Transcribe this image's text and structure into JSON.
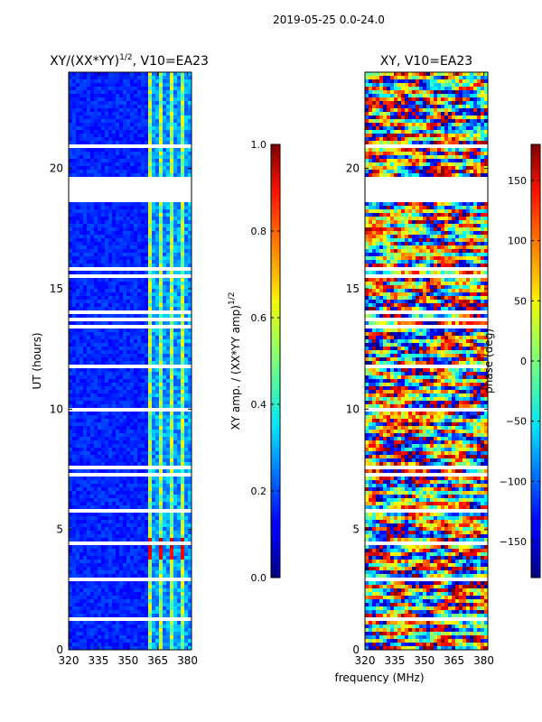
{
  "chart_data": {
    "type": "heatmap",
    "suptitle": "2019-05-25 0.0-24.0",
    "xlabel": "frequency (MHz)",
    "ylabel": "UT (hours)",
    "x_range_mhz": [
      320,
      382
    ],
    "y_range_hours": [
      0,
      24
    ],
    "x_ticks": [
      "320",
      "335",
      "350",
      "365",
      "380"
    ],
    "y_ticks": [
      "0",
      "5",
      "10",
      "15",
      "20"
    ],
    "data_gap_hours": [
      18.6,
      19.6
    ],
    "panels": [
      {
        "id": "amp",
        "title_prefix": "XY/(XX*YY)",
        "title_exp": "1/2",
        "title_suffix": ", V10=EA23",
        "quantity": "normalized XY amplitude",
        "colorbar": {
          "label_prefix": "XY amp. / (XX*YY amp)",
          "label_exp": "1/2",
          "range": [
            0.0,
            1.0
          ],
          "ticks": [
            "0.0",
            "0.2",
            "0.4",
            "0.6",
            "0.8",
            "1.0"
          ]
        }
      },
      {
        "id": "phase",
        "title_prefix": "XY",
        "title_exp": "",
        "title_suffix": ", V10=EA23",
        "quantity": "XY phase",
        "colorbar": {
          "label_prefix": "phase (deg)",
          "label_exp": "",
          "range": [
            -180,
            180
          ],
          "ticks": [
            "−150",
            "−100",
            "−50",
            "0",
            "50",
            "100",
            "150"
          ]
        }
      }
    ]
  }
}
